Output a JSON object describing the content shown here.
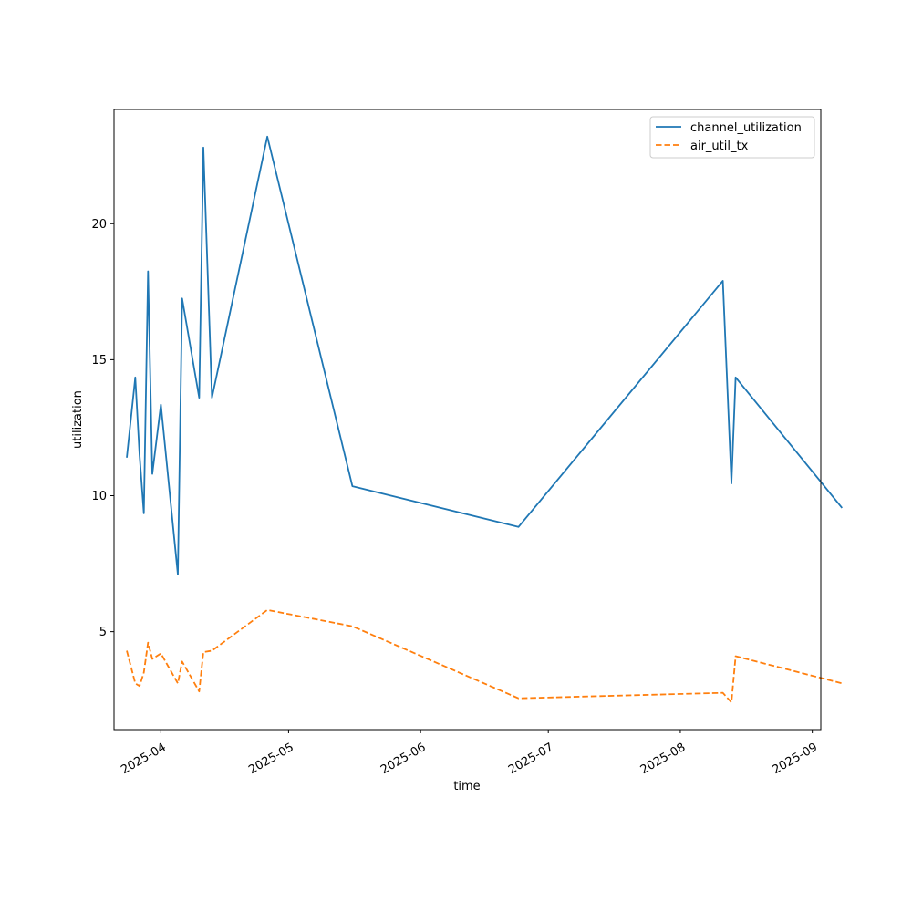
{
  "chart_data": {
    "type": "line",
    "xlabel": "time",
    "ylabel": "utilization",
    "x_ticks": [
      "2025-04",
      "2025-05",
      "2025-06",
      "2025-07",
      "2025-08",
      "2025-09"
    ],
    "y_ticks": [
      5,
      10,
      15,
      20
    ],
    "xlim": [
      "2025-03-21",
      "2025-09-03"
    ],
    "ylim": [
      1.4,
      24.2
    ],
    "grid": false,
    "legend_position": "top-right",
    "series": [
      {
        "name": "channel_utilization",
        "color": "#1f77b4",
        "style": "solid",
        "points": [
          {
            "x": "2025-03-24",
            "y": 11.4
          },
          {
            "x": "2025-03-26",
            "y": 14.35
          },
          {
            "x": "2025-03-27",
            "y": 11.5
          },
          {
            "x": "2025-03-28",
            "y": 9.35
          },
          {
            "x": "2025-03-29",
            "y": 18.25
          },
          {
            "x": "2025-03-30",
            "y": 10.8
          },
          {
            "x": "2025-04-01",
            "y": 13.35
          },
          {
            "x": "2025-04-05",
            "y": 7.1
          },
          {
            "x": "2025-04-06",
            "y": 17.25
          },
          {
            "x": "2025-04-10",
            "y": 13.6
          },
          {
            "x": "2025-04-11",
            "y": 22.8
          },
          {
            "x": "2025-04-13",
            "y": 13.6
          },
          {
            "x": "2025-04-26",
            "y": 23.2
          },
          {
            "x": "2025-05-16",
            "y": 10.35
          },
          {
            "x": "2025-06-24",
            "y": 8.85
          },
          {
            "x": "2025-08-11",
            "y": 17.9
          },
          {
            "x": "2025-08-13",
            "y": 10.45
          },
          {
            "x": "2025-08-14",
            "y": 14.35
          },
          {
            "x": "2025-09-08",
            "y": 9.55
          }
        ]
      },
      {
        "name": "air_util_tx",
        "color": "#ff7f0e",
        "style": "dashed",
        "points": [
          {
            "x": "2025-03-24",
            "y": 4.3
          },
          {
            "x": "2025-03-26",
            "y": 3.1
          },
          {
            "x": "2025-03-27",
            "y": 3.0
          },
          {
            "x": "2025-03-28",
            "y": 3.5
          },
          {
            "x": "2025-03-29",
            "y": 4.6
          },
          {
            "x": "2025-03-30",
            "y": 4.0
          },
          {
            "x": "2025-04-01",
            "y": 4.2
          },
          {
            "x": "2025-04-05",
            "y": 3.1
          },
          {
            "x": "2025-04-06",
            "y": 3.9
          },
          {
            "x": "2025-04-10",
            "y": 2.8
          },
          {
            "x": "2025-04-11",
            "y": 4.25
          },
          {
            "x": "2025-04-13",
            "y": 4.3
          },
          {
            "x": "2025-04-26",
            "y": 5.8
          },
          {
            "x": "2025-05-16",
            "y": 5.2
          },
          {
            "x": "2025-06-24",
            "y": 2.55
          },
          {
            "x": "2025-08-11",
            "y": 2.75
          },
          {
            "x": "2025-08-13",
            "y": 2.4
          },
          {
            "x": "2025-08-14",
            "y": 4.1
          },
          {
            "x": "2025-09-08",
            "y": 3.1
          }
        ]
      }
    ]
  }
}
